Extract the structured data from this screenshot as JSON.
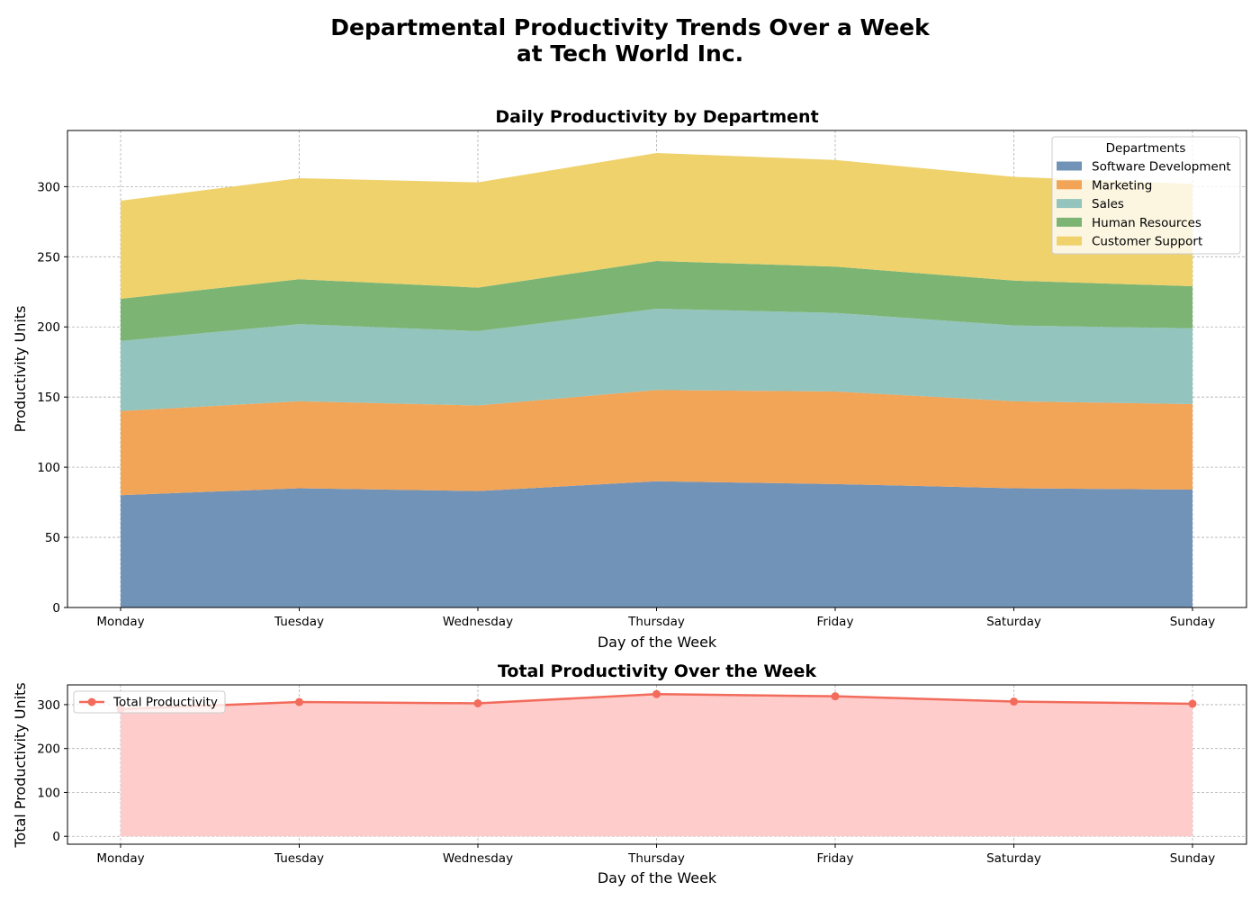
{
  "suptitle": {
    "line1": "Departmental Productivity Trends Over a Week",
    "line2": "at Tech World Inc."
  },
  "chart_data": [
    {
      "type": "area",
      "stacked": true,
      "title": "Daily Productivity by Department",
      "xlabel": "Day of the Week",
      "ylabel": "Productivity Units",
      "categories": [
        "Monday",
        "Tuesday",
        "Wednesday",
        "Thursday",
        "Friday",
        "Saturday",
        "Sunday"
      ],
      "ylim": [
        0,
        340
      ],
      "yticks": [
        0,
        50,
        100,
        150,
        200,
        250,
        300
      ],
      "grid": true,
      "legend": {
        "title": "Departments",
        "placement": "top-right"
      },
      "series": [
        {
          "name": "Software Development",
          "color": "#7193b8",
          "values": [
            80,
            85,
            83,
            90,
            88,
            85,
            84
          ]
        },
        {
          "name": "Marketing",
          "color": "#f2a457",
          "values": [
            60,
            62,
            61,
            65,
            66,
            62,
            61
          ]
        },
        {
          "name": "Sales",
          "color": "#93c4bd",
          "values": [
            50,
            55,
            53,
            58,
            56,
            54,
            54
          ]
        },
        {
          "name": "Human Resources",
          "color": "#7bb473",
          "values": [
            30,
            32,
            31,
            34,
            33,
            32,
            30
          ]
        },
        {
          "name": "Customer Support",
          "color": "#efd26c",
          "values": [
            70,
            72,
            75,
            77,
            76,
            74,
            73
          ]
        }
      ]
    },
    {
      "type": "line",
      "fill": true,
      "title": "Total Productivity Over the Week",
      "xlabel": "Day of the Week",
      "ylabel": "Total Productivity Units",
      "categories": [
        "Monday",
        "Tuesday",
        "Wednesday",
        "Thursday",
        "Friday",
        "Saturday",
        "Sunday"
      ],
      "ylim": [
        -18,
        345
      ],
      "yticks": [
        0,
        100,
        200,
        300
      ],
      "grid": true,
      "legend": {
        "placement": "top-left"
      },
      "series": [
        {
          "name": "Total Productivity",
          "color": "#f26b5b",
          "fill_color": "#ffcccc",
          "values": [
            290,
            306,
            303,
            324,
            319,
            307,
            302
          ]
        }
      ]
    }
  ]
}
